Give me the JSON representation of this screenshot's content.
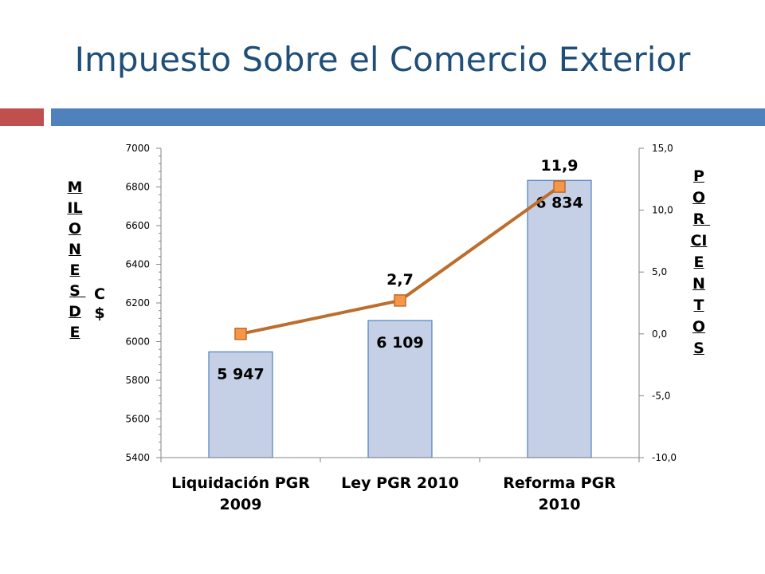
{
  "slide": {
    "title": "Impuesto Sobre el Comercio Exterior",
    "accent_colors": [
      "#c0504d",
      "#4f81bd"
    ]
  },
  "chart_data": {
    "type": "bar",
    "title": "",
    "categories": [
      "Liquidación PGR 2009",
      "Ley PGR 2010",
      "Reforma PGR 2010"
    ],
    "ylabel_left": "MILONES DE",
    "ylabel_left_unit": "C$",
    "ylabel_right": "POR CIENTOS",
    "ylim_left": [
      5400,
      7000
    ],
    "yticks_left": [
      "5400",
      "5600",
      "5800",
      "6000",
      "6200",
      "6400",
      "6600",
      "6800",
      "7000"
    ],
    "ylim_right": [
      -10,
      15
    ],
    "yticks_right": [
      "-10,0",
      "-5,0",
      "0,0",
      "5,0",
      "10,0",
      "15,0"
    ],
    "series": [
      {
        "kind": "bar",
        "axis": "left",
        "values": [
          5947,
          6109,
          6834
        ],
        "labels": [
          "5 947",
          "6 109",
          "6 834"
        ],
        "color": "#c5d0e6",
        "edge_color": "#4f81bd"
      },
      {
        "kind": "line",
        "axis": "right",
        "values": [
          0.0,
          2.7,
          11.9
        ],
        "labels": [
          "",
          "2,7",
          "11,9"
        ],
        "color": "#bd6d2c",
        "marker_color": "#f79646"
      }
    ],
    "grid": false,
    "legend": "none"
  }
}
